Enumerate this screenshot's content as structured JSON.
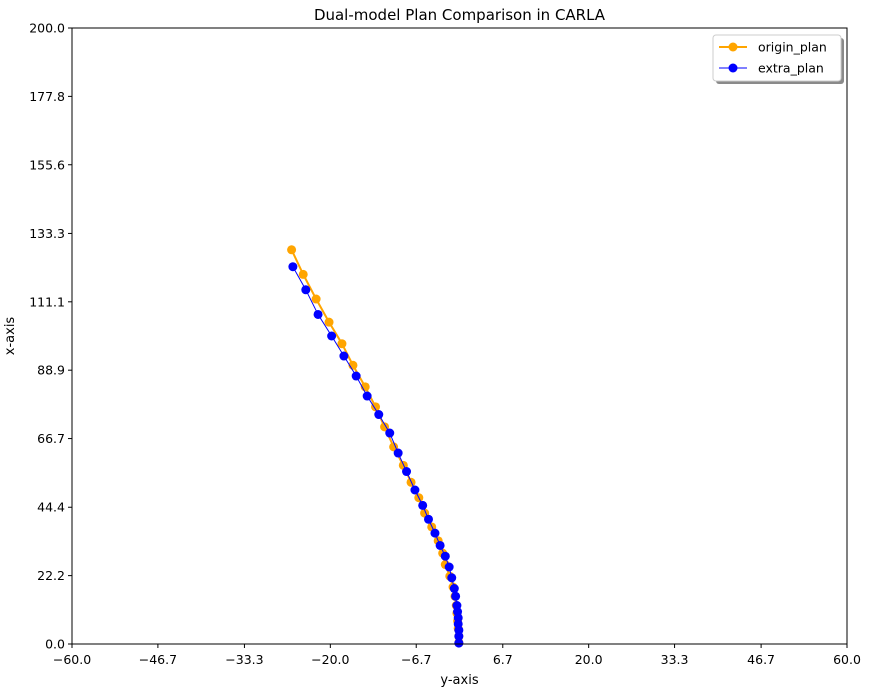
{
  "chart_data": {
    "type": "line",
    "title": "Dual-model Plan Comparison in CARLA",
    "xlabel": "y-axis",
    "ylabel": "x-axis",
    "xlim": [
      -60,
      60
    ],
    "ylim": [
      0,
      200
    ],
    "xticks": [
      "−60.0",
      "−46.7",
      "−33.3",
      "−20.0",
      "−6.7",
      "6.7",
      "20.0",
      "33.3",
      "46.7",
      "60.0"
    ],
    "xtick_values": [
      -60,
      -46.7,
      -33.3,
      -20,
      -6.7,
      6.7,
      20,
      33.3,
      46.7,
      60
    ],
    "yticks": [
      "0.0",
      "22.2",
      "44.4",
      "66.7",
      "88.9",
      "111.1",
      "133.3",
      "155.6",
      "177.8",
      "200.0"
    ],
    "ytick_values": [
      0,
      22.2,
      44.4,
      66.7,
      88.9,
      111.1,
      133.3,
      155.6,
      177.8,
      200
    ],
    "grid": false,
    "legend_position": "top-right",
    "series": [
      {
        "name": "origin_plan",
        "color": "#ffa500",
        "marker": "circle",
        "line_width": 2,
        "points": [
          [
            -0.1,
            0.5
          ],
          [
            -0.1,
            2.5
          ],
          [
            -0.2,
            5.0
          ],
          [
            -0.3,
            7.5
          ],
          [
            -0.4,
            10.0
          ],
          [
            -0.5,
            12.5
          ],
          [
            -0.7,
            15.5
          ],
          [
            -1.0,
            18.5
          ],
          [
            -1.5,
            22.0
          ],
          [
            -2.2,
            25.8
          ],
          [
            -2.6,
            29.5
          ],
          [
            -3.3,
            33.5
          ],
          [
            -4.3,
            38.0
          ],
          [
            -5.4,
            42.5
          ],
          [
            -6.3,
            47.5
          ],
          [
            -7.5,
            52.5
          ],
          [
            -8.7,
            58.0
          ],
          [
            -10.2,
            64.0
          ],
          [
            -11.6,
            70.5
          ],
          [
            -13.0,
            77.0
          ],
          [
            -14.6,
            83.5
          ],
          [
            -16.5,
            90.5
          ],
          [
            -18.2,
            97.5
          ],
          [
            -20.2,
            104.5
          ],
          [
            -22.2,
            112.0
          ],
          [
            -24.2,
            120.0
          ],
          [
            -26.0,
            128.0
          ]
        ]
      },
      {
        "name": "extra_plan",
        "color": "#0000ff",
        "marker": "circle",
        "line_width": 1,
        "points": [
          [
            -0.1,
            0.3
          ],
          [
            -0.1,
            2.5
          ],
          [
            -0.1,
            4.5
          ],
          [
            -0.2,
            6.5
          ],
          [
            -0.2,
            8.5
          ],
          [
            -0.3,
            10.5
          ],
          [
            -0.4,
            12.5
          ],
          [
            -0.6,
            15.5
          ],
          [
            -0.8,
            18.0
          ],
          [
            -1.2,
            21.5
          ],
          [
            -1.6,
            25.0
          ],
          [
            -2.2,
            28.5
          ],
          [
            -3.0,
            32.0
          ],
          [
            -3.8,
            36.0
          ],
          [
            -4.8,
            40.5
          ],
          [
            -5.7,
            45.0
          ],
          [
            -6.9,
            50.0
          ],
          [
            -8.2,
            56.0
          ],
          [
            -9.5,
            62.0
          ],
          [
            -10.8,
            68.5
          ],
          [
            -12.5,
            74.5
          ],
          [
            -14.3,
            80.5
          ],
          [
            -16.0,
            87.0
          ],
          [
            -17.9,
            93.5
          ],
          [
            -19.8,
            100.0
          ],
          [
            -21.9,
            107.0
          ],
          [
            -23.8,
            115.0
          ],
          [
            -25.8,
            122.5
          ]
        ]
      }
    ]
  }
}
